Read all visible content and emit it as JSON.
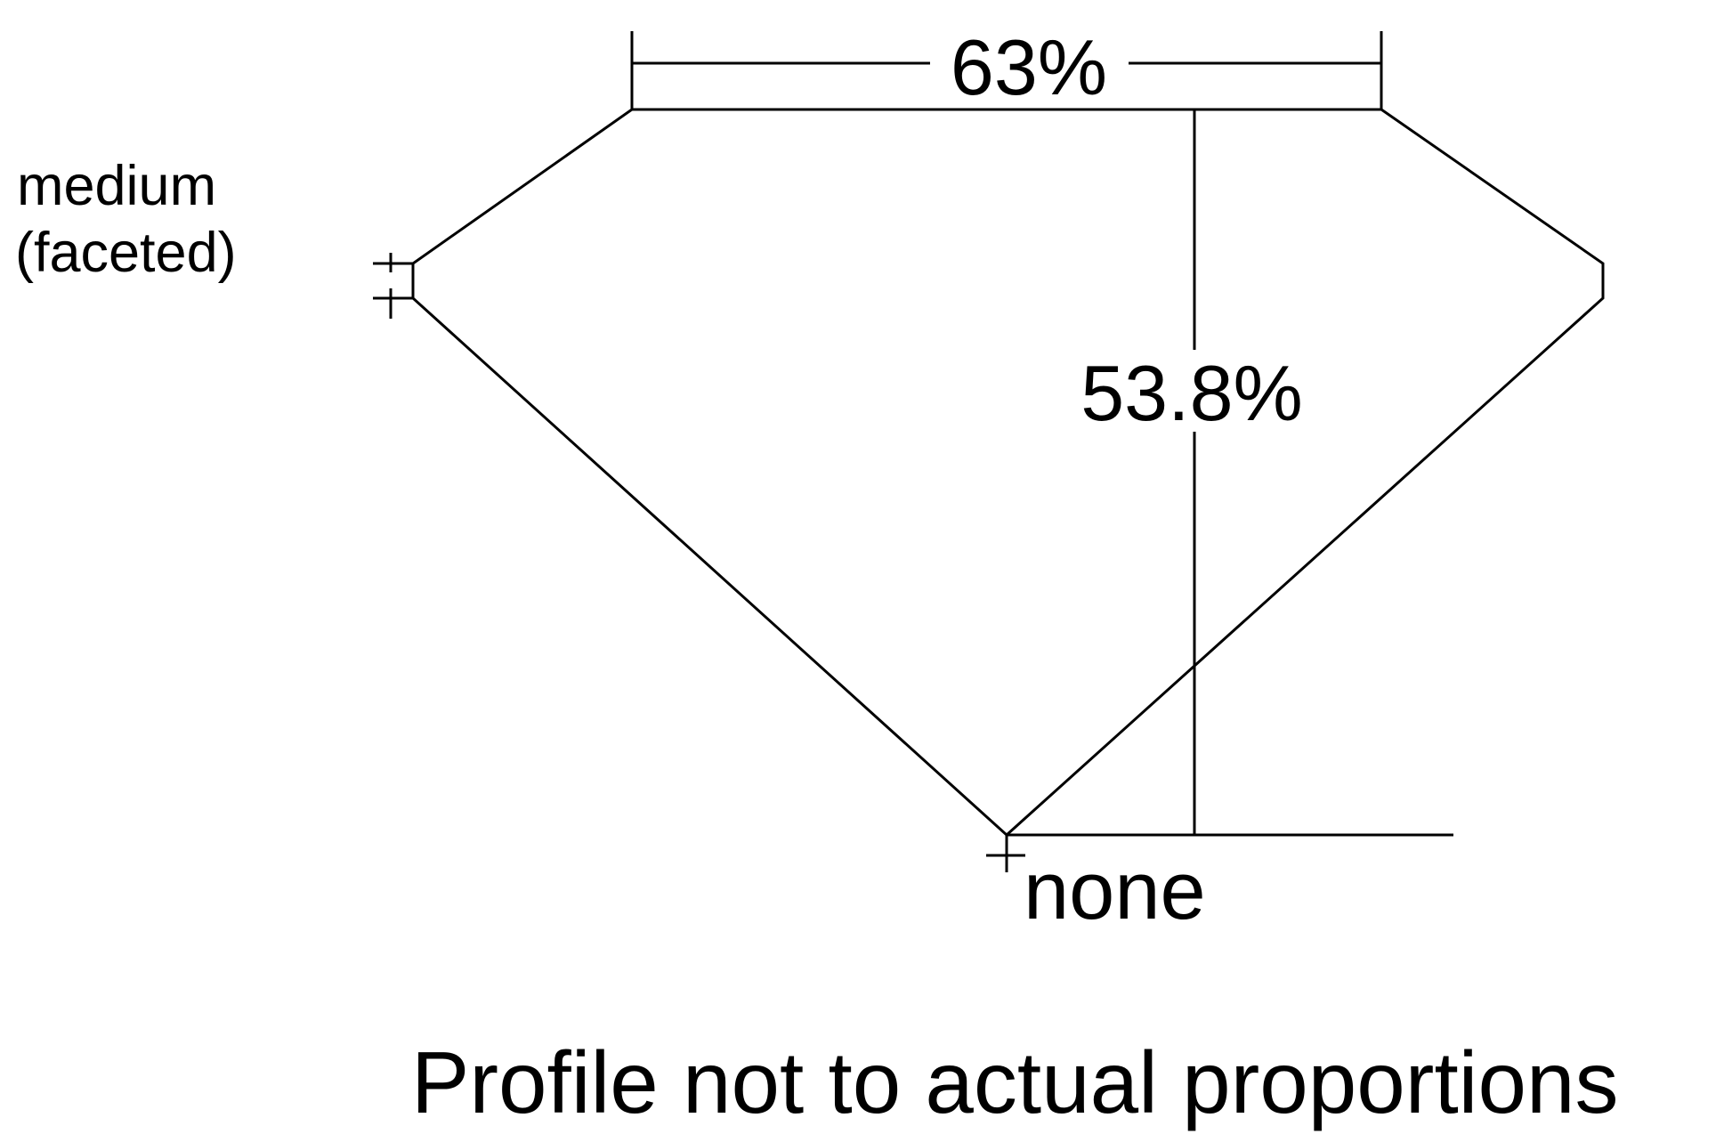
{
  "diagram": {
    "table_percent": "63%",
    "depth_percent": "53.8%",
    "girdle_label_line1": "medium",
    "girdle_label_line2": "(faceted)",
    "culet_label": "none",
    "caption": "Profile not to actual proportions",
    "line_color": "#000000",
    "background": "#ffffff"
  }
}
